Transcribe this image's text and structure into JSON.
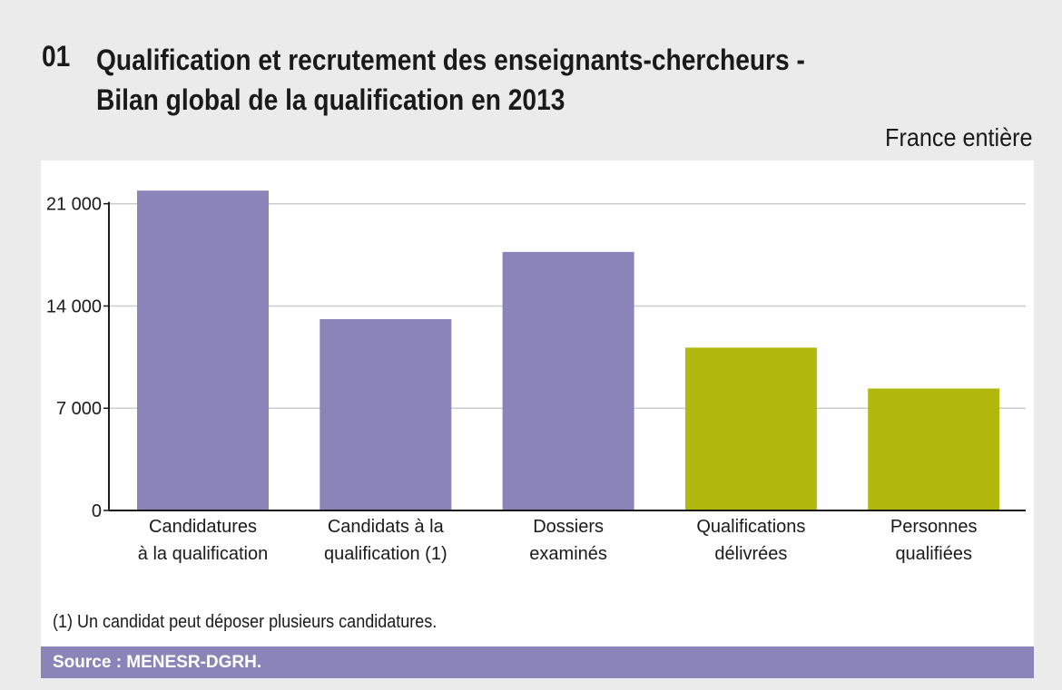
{
  "header": {
    "number": "01",
    "title_line1": "Qualification et recrutement des enseignants-chercheurs -",
    "title_line2": "Bilan global de la qualification en 2013",
    "scope": "France entière"
  },
  "footnote": "(1) Un candidat peut déposer plusieurs candidatures.",
  "source": "Source : MENESR-DGRH.",
  "chart_data": {
    "type": "bar",
    "title": "Bilan global de la qualification en 2013",
    "xlabel": "",
    "ylabel": "",
    "ylim": [
      0,
      21000
    ],
    "yticks": [
      0,
      7000,
      14000,
      21000
    ],
    "ytick_labels": [
      "0",
      "7 000",
      "14 000",
      "21 000"
    ],
    "grid": true,
    "categories": [
      [
        "Candidatures",
        "à la qualification"
      ],
      [
        "Candidats à la",
        "qualification (1)"
      ],
      [
        "Dossiers",
        "examinés"
      ],
      [
        "Qualifications",
        "délivrées"
      ],
      [
        "Personnes",
        "qualifiées"
      ]
    ],
    "values": [
      21900,
      13100,
      17700,
      11150,
      8350
    ],
    "colors": [
      "#8a85b9",
      "#8a85b9",
      "#8a85b9",
      "#b1b90f",
      "#b1b90f"
    ]
  }
}
